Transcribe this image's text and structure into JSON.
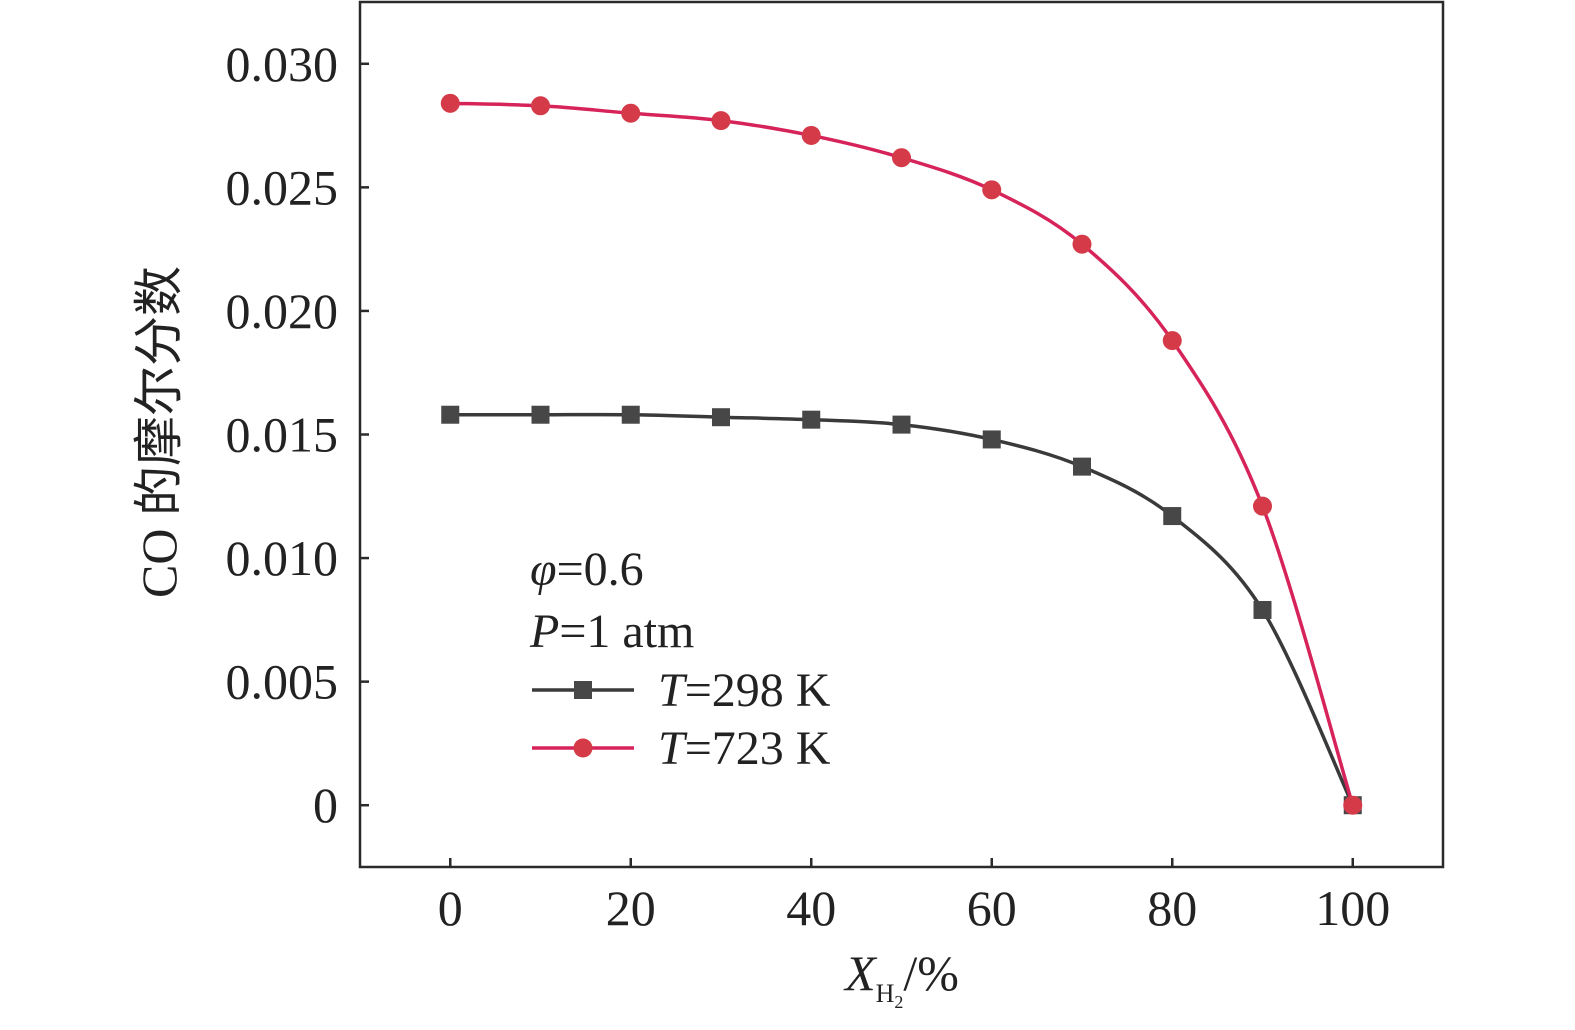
{
  "chart_data": {
    "type": "line",
    "x": [
      0,
      10,
      20,
      30,
      40,
      50,
      60,
      70,
      80,
      90,
      100
    ],
    "xlim": [
      -10,
      110
    ],
    "ylim": [
      -0.0025,
      0.0325
    ],
    "xticks": [
      0,
      20,
      40,
      60,
      80,
      100
    ],
    "xtick_labels": [
      "0",
      "20",
      "40",
      "60",
      "80",
      "100"
    ],
    "yticks": [
      0,
      0.005,
      0.01,
      0.015,
      0.02,
      0.025,
      0.03
    ],
    "ytick_labels": [
      "0",
      "0.005",
      "0.010",
      "0.015",
      "0.020",
      "0.025",
      "0.030"
    ],
    "xlabel": {
      "main": "X",
      "sub": "H",
      "subsub": "2",
      "rest": "/%"
    },
    "ylabel": "CO 的摩尔分数",
    "grid": false,
    "legend_position": "bottom-left",
    "annotations": [
      {
        "sym": "φ",
        "rest": "=0.6"
      },
      {
        "sym": "P",
        "rest": "=1 atm"
      }
    ],
    "series": [
      {
        "name": "T=298 K",
        "name_sym": "T",
        "name_rest": "=298 K",
        "marker": "square",
        "color": "#3a3a3a",
        "marker_color": "#474747",
        "values": [
          0.0158,
          0.0158,
          0.0158,
          0.0157,
          0.0156,
          0.0154,
          0.0148,
          0.0137,
          0.0117,
          0.0079,
          0.0
        ]
      },
      {
        "name": "T=723 K",
        "name_sym": "T",
        "name_rest": "=723 K",
        "marker": "circle",
        "color": "#d6245a",
        "marker_color": "#d43a48",
        "values": [
          0.0284,
          0.0283,
          0.028,
          0.0277,
          0.0271,
          0.0262,
          0.0249,
          0.0227,
          0.0188,
          0.0121,
          0.0
        ]
      }
    ]
  }
}
